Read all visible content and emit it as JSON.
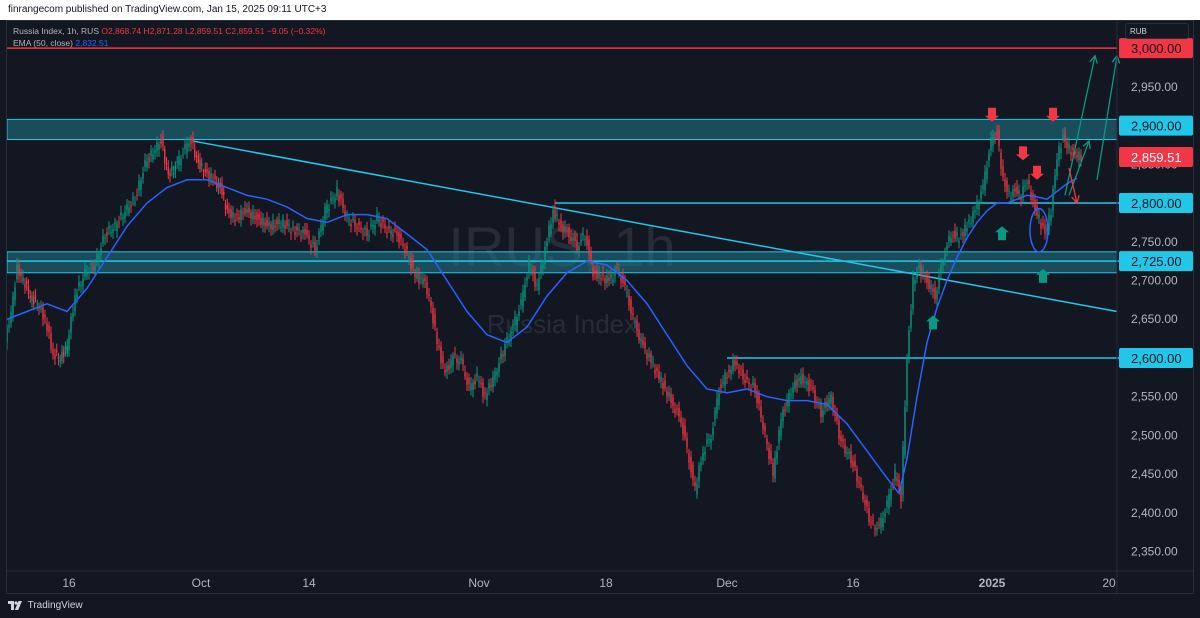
{
  "header": {
    "published_text": "finrangecom published on TradingView.com, Jan 15, 2025 09:11 UTC+3"
  },
  "legend": {
    "symbol": "Russia Index, 1h, RUS",
    "open": "O2,868.74",
    "high": "H2,871.28",
    "low": "L2,859.51",
    "close": "C2,859.51",
    "change": "−9.05 (−0.32%)",
    "ema_label": "EMA (50, close)",
    "ema_value": "2,832.51"
  },
  "currency": "RUB",
  "watermark": {
    "symbol": "IRUS, 1h",
    "name": "Russia Index"
  },
  "footer": {
    "brand": "TradingView"
  },
  "colors": {
    "background": "#131722",
    "up": "#089981",
    "down": "#f23645",
    "ema": "#2962ff",
    "levels": "#22c7e8",
    "zone_fill": "#1f7a8c",
    "resistance": "#f23645"
  },
  "chart_data": {
    "type": "line",
    "y_axis": {
      "range": [
        2325,
        3035
      ],
      "ticks": [
        "2,350.00",
        "2,400.00",
        "2,450.00",
        "2,500.00",
        "2,550.00",
        "2,600.00",
        "2,650.00",
        "2,700.00",
        "2,750.00",
        "2,800.00",
        "2,850.00",
        "2,900.00",
        "2,950.00",
        "3,000.00"
      ],
      "tick_values": [
        2350,
        2400,
        2450,
        2500,
        2550,
        2600,
        2650,
        2700,
        2750,
        2800,
        2850,
        2900,
        2950,
        3000
      ]
    },
    "x_axis": {
      "ticks": [
        "16",
        "Oct",
        "14",
        "Nov",
        "18",
        "Dec",
        "16",
        "2025",
        "20"
      ]
    },
    "series": [
      {
        "name": "Russia Index",
        "points": [
          [
            0,
            2620
          ],
          [
            6,
            2660
          ],
          [
            12,
            2715
          ],
          [
            18,
            2700
          ],
          [
            25,
            2680
          ],
          [
            32,
            2670
          ],
          [
            40,
            2650
          ],
          [
            48,
            2605
          ],
          [
            55,
            2600
          ],
          [
            62,
            2615
          ],
          [
            70,
            2680
          ],
          [
            80,
            2710
          ],
          [
            90,
            2720
          ],
          [
            100,
            2760
          ],
          [
            110,
            2770
          ],
          [
            120,
            2790
          ],
          [
            130,
            2805
          ],
          [
            140,
            2850
          ],
          [
            150,
            2870
          ],
          [
            156,
            2880
          ],
          [
            163,
            2835
          ],
          [
            172,
            2850
          ],
          [
            180,
            2870
          ],
          [
            186,
            2880
          ],
          [
            193,
            2850
          ],
          [
            200,
            2840
          ],
          [
            208,
            2830
          ],
          [
            215,
            2820
          ],
          [
            222,
            2790
          ],
          [
            230,
            2780
          ],
          [
            240,
            2790
          ],
          [
            252,
            2780
          ],
          [
            264,
            2770
          ],
          [
            276,
            2775
          ],
          [
            288,
            2765
          ],
          [
            300,
            2760
          ],
          [
            310,
            2740
          ],
          [
            320,
            2790
          ],
          [
            332,
            2815
          ],
          [
            342,
            2780
          ],
          [
            352,
            2770
          ],
          [
            362,
            2760
          ],
          [
            372,
            2780
          ],
          [
            382,
            2765
          ],
          [
            392,
            2760
          ],
          [
            402,
            2735
          ],
          [
            410,
            2705
          ],
          [
            418,
            2700
          ],
          [
            424,
            2680
          ],
          [
            432,
            2620
          ],
          [
            440,
            2580
          ],
          [
            448,
            2600
          ],
          [
            456,
            2595
          ],
          [
            464,
            2560
          ],
          [
            472,
            2575
          ],
          [
            480,
            2550
          ],
          [
            490,
            2580
          ],
          [
            500,
            2615
          ],
          [
            508,
            2640
          ],
          [
            516,
            2670
          ],
          [
            524,
            2720
          ],
          [
            532,
            2690
          ],
          [
            540,
            2740
          ],
          [
            548,
            2790
          ],
          [
            556,
            2770
          ],
          [
            564,
            2760
          ],
          [
            572,
            2745
          ],
          [
            580,
            2760
          ],
          [
            588,
            2710
          ],
          [
            596,
            2705
          ],
          [
            604,
            2700
          ],
          [
            612,
            2715
          ],
          [
            620,
            2690
          ],
          [
            628,
            2650
          ],
          [
            636,
            2620
          ],
          [
            644,
            2600
          ],
          [
            652,
            2580
          ],
          [
            660,
            2560
          ],
          [
            668,
            2540
          ],
          [
            676,
            2520
          ],
          [
            684,
            2470
          ],
          [
            690,
            2430
          ],
          [
            698,
            2480
          ],
          [
            706,
            2500
          ],
          [
            714,
            2560
          ],
          [
            722,
            2580
          ],
          [
            730,
            2595
          ],
          [
            740,
            2570
          ],
          [
            750,
            2560
          ],
          [
            760,
            2500
          ],
          [
            768,
            2450
          ],
          [
            776,
            2520
          ],
          [
            786,
            2560
          ],
          [
            796,
            2575
          ],
          [
            806,
            2560
          ],
          [
            816,
            2530
          ],
          [
            826,
            2550
          ],
          [
            836,
            2490
          ],
          [
            846,
            2470
          ],
          [
            856,
            2430
          ],
          [
            866,
            2385
          ],
          [
            874,
            2380
          ],
          [
            882,
            2410
          ],
          [
            890,
            2450
          ],
          [
            896,
            2420
          ],
          [
            902,
            2600
          ],
          [
            908,
            2700
          ],
          [
            914,
            2715
          ],
          [
            922,
            2700
          ],
          [
            930,
            2680
          ],
          [
            938,
            2730
          ],
          [
            946,
            2760
          ],
          [
            954,
            2755
          ],
          [
            962,
            2770
          ],
          [
            970,
            2790
          ],
          [
            978,
            2820
          ],
          [
            986,
            2880
          ],
          [
            992,
            2890
          ],
          [
            998,
            2830
          ],
          [
            1004,
            2810
          ],
          [
            1010,
            2815
          ],
          [
            1016,
            2810
          ],
          [
            1022,
            2830
          ],
          [
            1028,
            2800
          ],
          [
            1034,
            2780
          ],
          [
            1040,
            2760
          ],
          [
            1046,
            2790
          ],
          [
            1052,
            2860
          ],
          [
            1058,
            2885
          ],
          [
            1064,
            2870
          ],
          [
            1070,
            2862
          ],
          [
            1076,
            2860
          ]
        ]
      },
      {
        "name": "EMA (50, close)",
        "points": [
          [
            0,
            2650
          ],
          [
            20,
            2660
          ],
          [
            40,
            2670
          ],
          [
            60,
            2660
          ],
          [
            80,
            2690
          ],
          [
            100,
            2730
          ],
          [
            120,
            2770
          ],
          [
            140,
            2800
          ],
          [
            160,
            2820
          ],
          [
            180,
            2830
          ],
          [
            200,
            2830
          ],
          [
            220,
            2820
          ],
          [
            240,
            2810
          ],
          [
            260,
            2805
          ],
          [
            280,
            2795
          ],
          [
            300,
            2780
          ],
          [
            320,
            2775
          ],
          [
            340,
            2785
          ],
          [
            360,
            2785
          ],
          [
            380,
            2780
          ],
          [
            400,
            2760
          ],
          [
            420,
            2740
          ],
          [
            440,
            2700
          ],
          [
            460,
            2660
          ],
          [
            480,
            2630
          ],
          [
            500,
            2620
          ],
          [
            520,
            2640
          ],
          [
            540,
            2680
          ],
          [
            560,
            2710
          ],
          [
            580,
            2725
          ],
          [
            600,
            2720
          ],
          [
            620,
            2700
          ],
          [
            640,
            2670
          ],
          [
            660,
            2630
          ],
          [
            680,
            2590
          ],
          [
            700,
            2560
          ],
          [
            720,
            2555
          ],
          [
            740,
            2560
          ],
          [
            760,
            2550
          ],
          [
            780,
            2545
          ],
          [
            800,
            2545
          ],
          [
            820,
            2540
          ],
          [
            840,
            2515
          ],
          [
            860,
            2480
          ],
          [
            880,
            2445
          ],
          [
            892,
            2425
          ],
          [
            900,
            2470
          ],
          [
            910,
            2550
          ],
          [
            920,
            2620
          ],
          [
            930,
            2665
          ],
          [
            940,
            2700
          ],
          [
            950,
            2730
          ],
          [
            960,
            2755
          ],
          [
            970,
            2775
          ],
          [
            980,
            2790
          ],
          [
            990,
            2800
          ],
          [
            1000,
            2800
          ],
          [
            1010,
            2805
          ],
          [
            1020,
            2810
          ],
          [
            1030,
            2808
          ],
          [
            1040,
            2805
          ],
          [
            1050,
            2815
          ],
          [
            1060,
            2825
          ],
          [
            1070,
            2832
          ]
        ]
      }
    ],
    "annotations": {
      "zones": [
        [
          2882,
          2908
        ],
        [
          2710,
          2737
        ]
      ],
      "horizontal_levels": [
        2800,
        2725,
        2600
      ],
      "resistance_level": 3000,
      "price_labels": {
        "3000": "3,000.00",
        "2900": "2,900.00",
        "2859.51": "2,859.51",
        "2800": "2,800.00",
        "2725": "2,725.00",
        "2600": "2,600.00"
      },
      "last_price": 2859.51,
      "trendline": [
        [
          186,
          2880
        ],
        [
          1110,
          2660
        ]
      ],
      "level_lines": [
        [
          548,
          2800,
          1120,
          2800
        ],
        [
          0,
          2725,
          1120,
          2725
        ],
        [
          720,
          2600,
          1120,
          2600
        ]
      ],
      "down_arrows": [
        [
          985,
          2905
        ],
        [
          1016,
          2855
        ],
        [
          1030,
          2830
        ],
        [
          1046,
          2905
        ]
      ],
      "up_arrows": [
        [
          995,
          2770
        ],
        [
          926,
          2655
        ],
        [
          1036,
          2715
        ]
      ],
      "projection_arrows_up": [
        [
          1058,
          2810,
          1088,
          2990
        ],
        [
          1090,
          2830,
          1110,
          2990
        ],
        [
          1062,
          2810,
          1082,
          2880
        ]
      ],
      "projection_arrow_down": [
        1062,
        2845,
        1070,
        2800
      ],
      "ellipse": [
        1032,
        2765,
        9,
        28
      ]
    }
  }
}
